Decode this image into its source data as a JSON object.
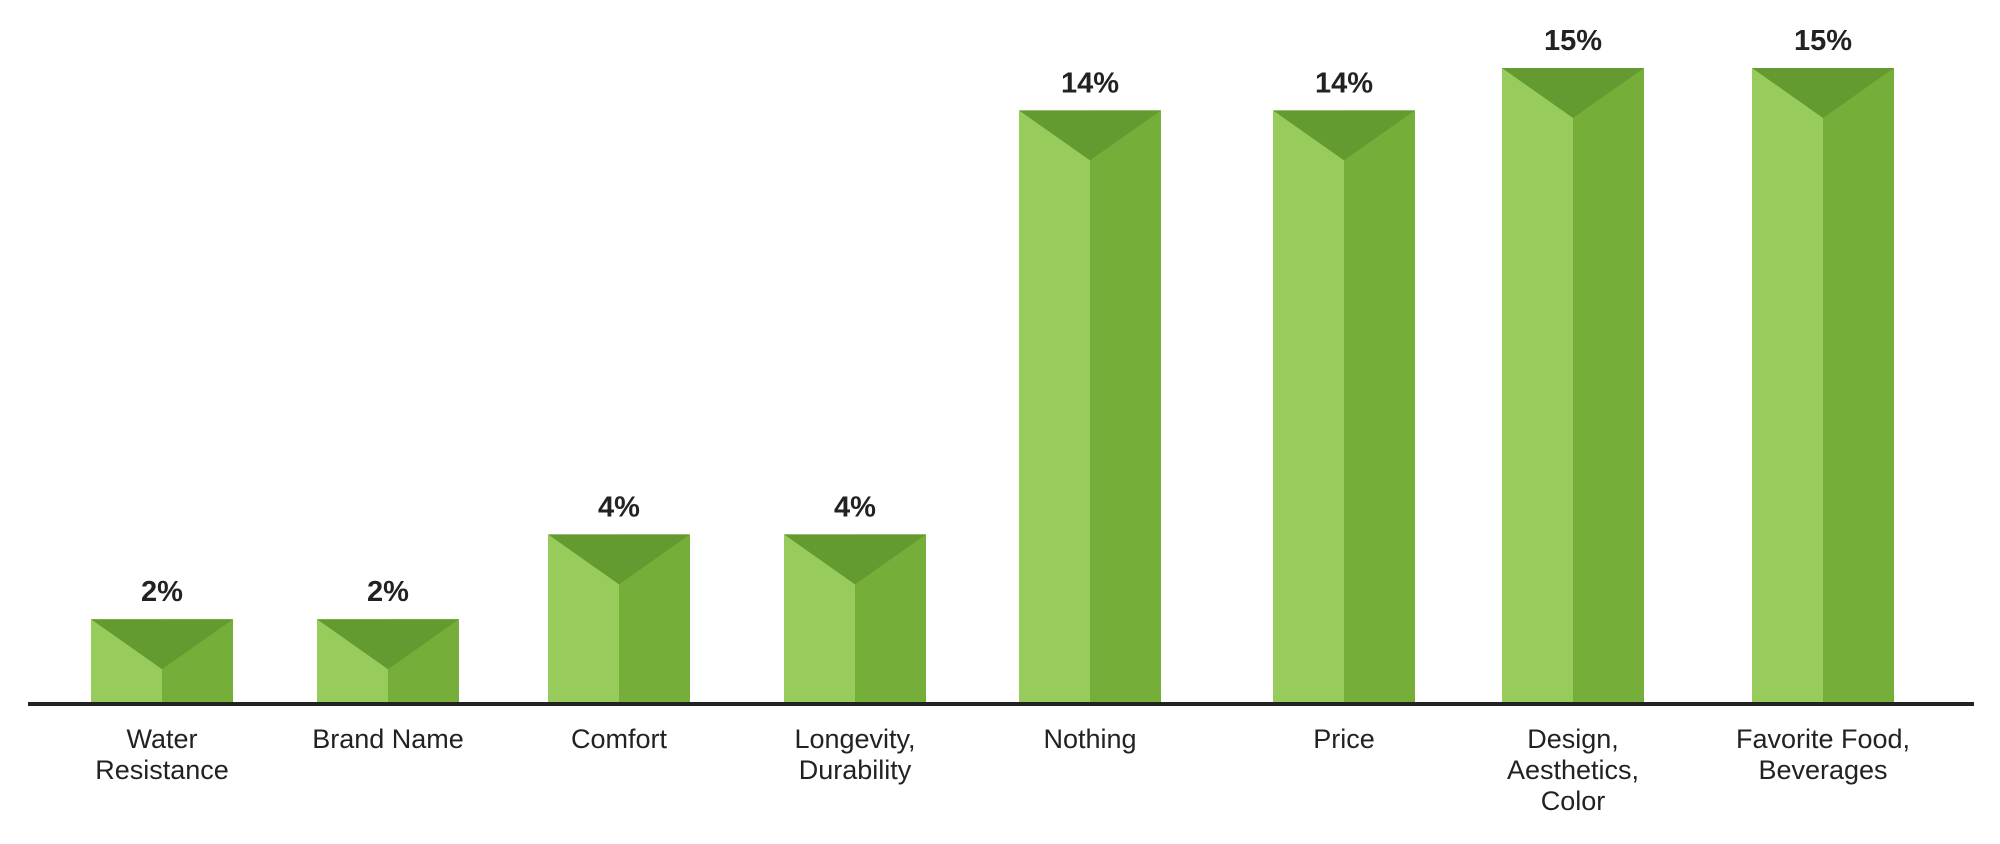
{
  "chart_data": {
    "type": "bar",
    "categories": [
      "Water\nResistance",
      "Brand Name",
      "Comfort",
      "Longevity,\nDurability",
      "Nothing",
      "Price",
      "Design,\nAesthetics,\nColor",
      "Favorite Food,\nBeverages"
    ],
    "values": [
      2,
      2,
      4,
      4,
      14,
      14,
      15,
      15
    ],
    "value_labels": [
      "2%",
      "2%",
      "4%",
      "4%",
      "14%",
      "14%",
      "15%",
      "15%"
    ],
    "colors": {
      "left": "#97cb5c",
      "right": "#75ae38",
      "top": "#639b31"
    }
  }
}
